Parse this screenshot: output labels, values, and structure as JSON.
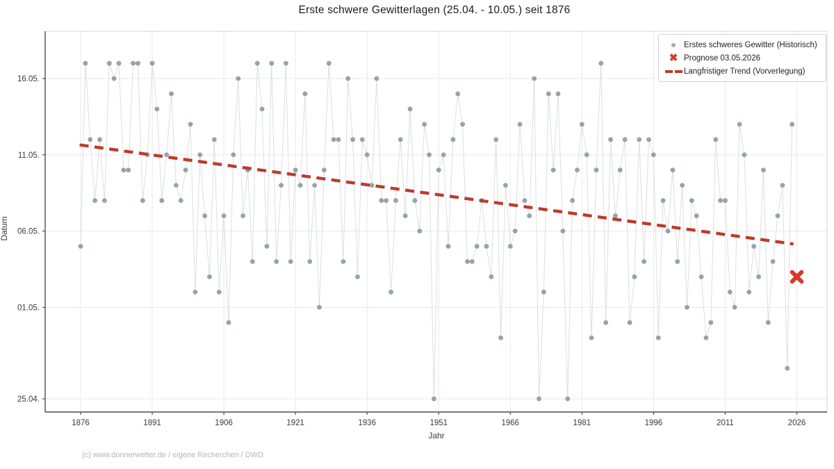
{
  "title": "Erste schwere Gewitterlagen (25.04. - 10.05.) seit 1876",
  "footer": "(c) www.donnerwetter.de / eigene Recherchen / DWD",
  "legend": {
    "historical_label": "Erstes schweres Gewitter (Historisch)",
    "prognose_label": "Prognose 03.05.2026",
    "trend_label": "Langfristiger Trend (Vorverlegung)"
  },
  "colors": {
    "dot": "#8d97a0",
    "dot_edge": "#7a858f",
    "line": "#dbdee1",
    "trend": "#bd3a2c",
    "prognose": "#d63a2a",
    "grid": "#e9e9e9",
    "frame": "#d5d5d5",
    "spine": "#4d4d4d",
    "tick_text": "#3a3a3a"
  },
  "chart_data": {
    "type": "scatter",
    "title": "Erste schwere Gewitterlagen (25.04. - 10.05.) seit 1876",
    "xlabel": "Jahr",
    "ylabel": "Datum",
    "x_ticks": [
      1876,
      1891,
      1906,
      1921,
      1936,
      1951,
      1966,
      1981,
      1996,
      2011,
      2026
    ],
    "y_ticks": [
      "16.05.",
      "11.05.",
      "06.05.",
      "01.05.",
      "25.04."
    ],
    "grid": true,
    "legend_position": "upper right",
    "historical": {
      "name": "Erstes schweres Gewitter (Historisch)",
      "start_year": 1876,
      "years": [
        1876,
        1877,
        1878,
        1879,
        1880,
        1881,
        1882,
        1883,
        1884,
        1885,
        1886,
        1887,
        1888,
        1889,
        1890,
        1891,
        1892,
        1893,
        1894,
        1895,
        1896,
        1897,
        1898,
        1899,
        1900,
        1901,
        1902,
        1903,
        1904,
        1905,
        1906,
        1907,
        1908,
        1909,
        1910,
        1911,
        1912,
        1913,
        1914,
        1915,
        1916,
        1917,
        1918,
        1919,
        1920,
        1921,
        1922,
        1923,
        1924,
        1925,
        1926,
        1927,
        1928,
        1929,
        1930,
        1931,
        1932,
        1933,
        1934,
        1935,
        1936,
        1937,
        1938,
        1939,
        1940,
        1941,
        1942,
        1943,
        1944,
        1945,
        1946,
        1947,
        1948,
        1949,
        1950,
        1951,
        1952,
        1953,
        1954,
        1955,
        1956,
        1957,
        1958,
        1959,
        1960,
        1961,
        1962,
        1963,
        1964,
        1965,
        1966,
        1967,
        1968,
        1969,
        1970,
        1971,
        1972,
        1973,
        1974,
        1975,
        1976,
        1977,
        1978,
        1979,
        1980,
        1981,
        1982,
        1983,
        1984,
        1985,
        1986,
        1987,
        1988,
        1989,
        1990,
        1991,
        1992,
        1993,
        1994,
        1995,
        1996,
        1997,
        1998,
        1999,
        2000,
        2001,
        2002,
        2003,
        2004,
        2005,
        2006,
        2007,
        2008,
        2009,
        2010,
        2011,
        2012,
        2013,
        2014,
        2015,
        2016,
        2017,
        2018,
        2019,
        2020,
        2021,
        2022,
        2023,
        2024,
        2025
      ],
      "dates": [
        "05.05.",
        "17.05.",
        "12.05.",
        "08.05.",
        "12.05.",
        "08.05.",
        "17.05.",
        "16.05.",
        "17.05.",
        "10.05.",
        "10.05.",
        "17.05.",
        "17.05.",
        "08.05.",
        "11.05.",
        "17.05.",
        "14.05.",
        "08.05.",
        "11.05.",
        "15.05.",
        "09.05.",
        "08.05.",
        "10.05.",
        "13.05.",
        "02.05.",
        "11.05.",
        "07.05.",
        "03.05.",
        "12.05.",
        "02.05.",
        "07.05.",
        "30.04.",
        "11.05.",
        "16.05.",
        "07.05.",
        "10.05.",
        "04.05.",
        "17.05.",
        "14.05.",
        "05.05.",
        "17.05.",
        "04.05.",
        "09.05.",
        "17.05.",
        "04.05.",
        "10.05.",
        "09.05.",
        "15.05.",
        "04.05.",
        "09.05.",
        "01.05.",
        "10.05.",
        "17.05.",
        "12.05.",
        "12.05.",
        "04.05.",
        "16.05.",
        "12.05.",
        "03.05.",
        "12.05.",
        "11.05.",
        "09.05.",
        "16.05.",
        "08.05.",
        "08.05.",
        "02.05.",
        "08.05.",
        "12.05.",
        "07.05.",
        "14.05.",
        "08.05.",
        "06.05.",
        "13.05.",
        "11.05.",
        "25.04.",
        "10.05.",
        "11.05.",
        "05.05.",
        "12.05.",
        "15.05.",
        "13.05.",
        "04.05.",
        "04.05.",
        "05.05.",
        "08.05.",
        "05.05.",
        "03.05.",
        "12.05.",
        "29.04.",
        "09.05.",
        "05.05.",
        "06.05.",
        "13.05.",
        "08.05.",
        "07.05.",
        "16.05.",
        "25.04.",
        "02.05.",
        "15.05.",
        "10.05.",
        "15.05.",
        "06.05.",
        "25.04.",
        "08.05.",
        "10.05.",
        "13.05.",
        "11.05.",
        "29.04.",
        "10.05.",
        "17.05.",
        "30.04.",
        "12.05.",
        "07.05.",
        "10.05.",
        "12.05.",
        "30.04.",
        "03.05.",
        "12.05.",
        "04.05.",
        "12.05.",
        "11.05.",
        "29.04.",
        "08.05.",
        "06.05.",
        "10.05.",
        "04.05.",
        "09.05.",
        "01.05.",
        "08.05.",
        "07.05.",
        "03.05.",
        "29.04.",
        "30.04.",
        "12.05.",
        "08.05.",
        "08.05.",
        "02.05.",
        "01.05.",
        "13.05.",
        "11.05.",
        "02.05.",
        "05.05.",
        "03.05.",
        "10.05.",
        "30.04.",
        "04.05.",
        "07.05.",
        "09.05.",
        "27.04.",
        "13.05."
      ]
    },
    "prognose": {
      "name": "Prognose 03.05.2026",
      "year": 2026,
      "date": "03.05."
    },
    "trend": {
      "name": "Langfristiger Trend (Vorverlegung)",
      "start_year": 1875.8,
      "start_day_offset": 16.65,
      "end_year": 2025.3,
      "end_day_offset": 10.15
    }
  }
}
